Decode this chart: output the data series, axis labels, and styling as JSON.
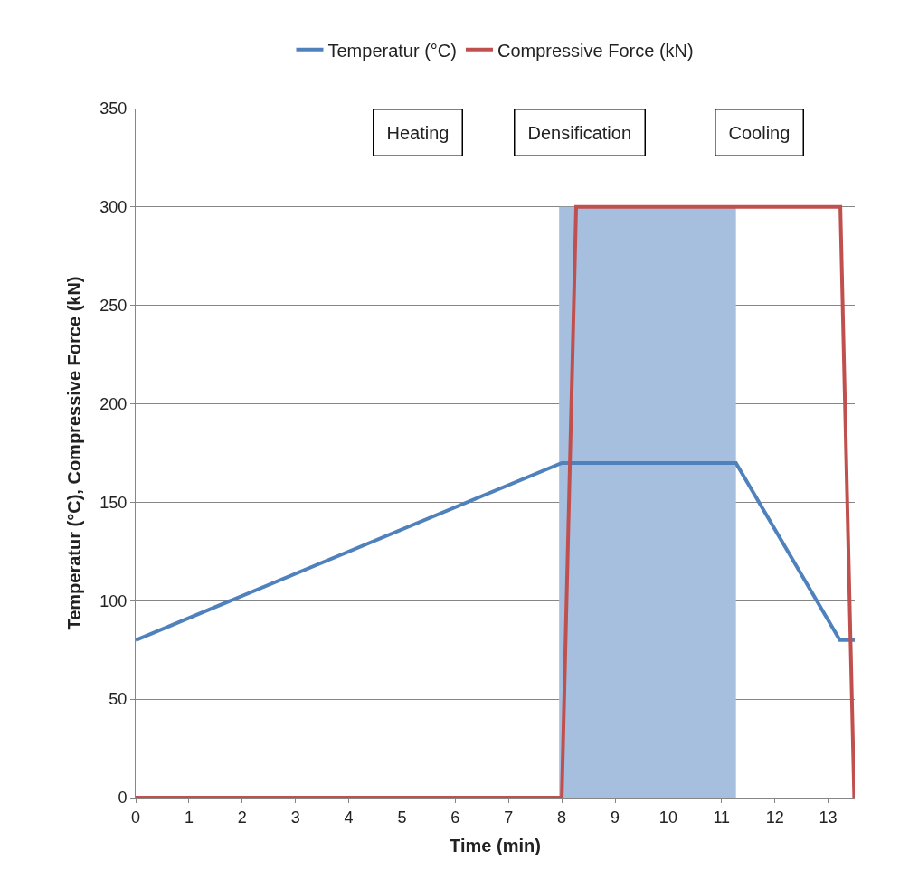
{
  "chart_data": {
    "type": "line",
    "xlabel": "Time (min)",
    "ylabel": "Temperatur (°C), Compressive Force (kN)",
    "xlim": [
      0,
      13.5
    ],
    "xticks": [
      0,
      1,
      2,
      3,
      4,
      5,
      6,
      7,
      8,
      9,
      10,
      11,
      12,
      13
    ],
    "ylim": [
      0,
      350
    ],
    "yticks": [
      0,
      50,
      100,
      150,
      200,
      250,
      300,
      350
    ],
    "grid": "y",
    "legend": "top",
    "line_style": "solid",
    "marker": "none",
    "annotations": [
      "Heating",
      "Densification",
      "Cooling"
    ],
    "series": [
      {
        "type": "area",
        "color": "#a7bfdf",
        "x": [
          7.95,
          11.27
        ],
        "values": [
          300,
          300
        ]
      },
      {
        "name": "Temperatur (°C)",
        "color": "#4f81bd",
        "x": [
          0,
          8,
          11.27,
          13.22,
          13.5
        ],
        "values": [
          80,
          170,
          170,
          80,
          80
        ]
      },
      {
        "name": "Compressive Force (kN)",
        "color": "#c0504d",
        "x": [
          0,
          8,
          8.27,
          13.23,
          13.49
        ],
        "values": [
          0,
          0,
          300,
          300,
          0
        ]
      }
    ]
  }
}
